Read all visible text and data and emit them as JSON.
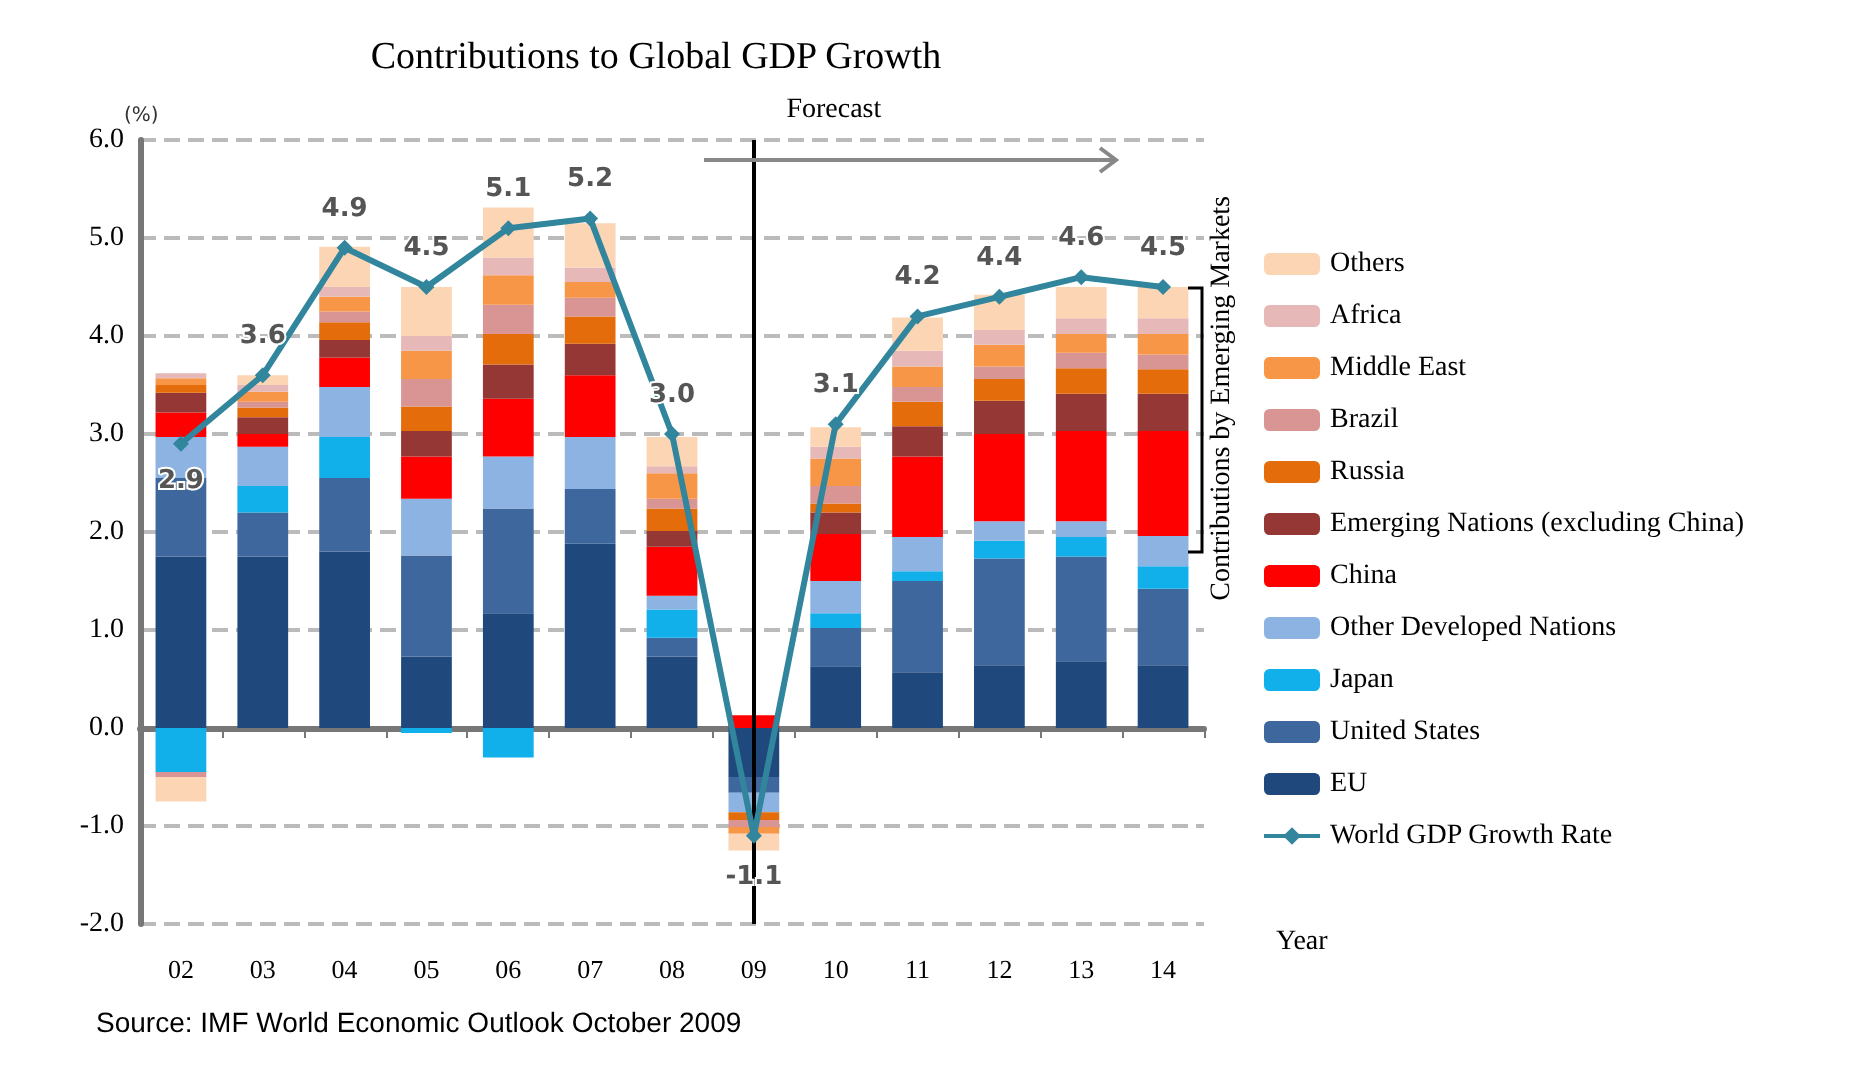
{
  "chart_data": {
    "type": "bar",
    "stacked": true,
    "title": "Contributions to Global GDP Growth",
    "ylabel": "(%)",
    "xlabel": "Year",
    "categories": [
      "02",
      "03",
      "04",
      "05",
      "06",
      "07",
      "08",
      "09",
      "10",
      "11",
      "12",
      "13",
      "14"
    ],
    "series": [
      {
        "name": "EU",
        "color": "#1f497d",
        "values": [
          1.75,
          1.75,
          1.8,
          0.73,
          1.17,
          1.88,
          0.73,
          -0.5,
          0.63,
          0.57,
          0.64,
          0.68,
          0.64
        ]
      },
      {
        "name": "United States",
        "color": "#3e679e",
        "values": [
          0.8,
          0.45,
          0.75,
          1.03,
          1.07,
          0.56,
          0.19,
          -0.16,
          0.39,
          0.93,
          1.09,
          1.07,
          0.78
        ]
      },
      {
        "name": "Japan",
        "color": "#12b0ea",
        "values": [
          -0.45,
          0.27,
          0.42,
          -0.05,
          -0.3,
          0,
          0.29,
          0,
          0.15,
          0.1,
          0.18,
          0.2,
          0.23
        ]
      },
      {
        "name": "Other Developed Nations",
        "color": "#8db3e2",
        "values": [
          0.42,
          0.4,
          0.51,
          0.58,
          0.53,
          0.53,
          0.14,
          -0.2,
          0.33,
          0.35,
          0.2,
          0.16,
          0.31
        ]
      },
      {
        "name": "China",
        "color": "#ff0000",
        "values": [
          0.25,
          0.13,
          0.3,
          0.43,
          0.59,
          0.63,
          0.5,
          0.13,
          0.48,
          0.82,
          0.89,
          0.92,
          1.07
        ]
      },
      {
        "name": "Emerging Nations (excluding China)",
        "color": "#953735",
        "values": [
          0.2,
          0.17,
          0.18,
          0.26,
          0.35,
          0.32,
          0.16,
          0,
          0.22,
          0.31,
          0.34,
          0.38,
          0.38
        ]
      },
      {
        "name": "Russia",
        "color": "#e46c0a",
        "values": [
          0.08,
          0.1,
          0.18,
          0.25,
          0.31,
          0.28,
          0.23,
          -0.08,
          0.09,
          0.25,
          0.22,
          0.26,
          0.25
        ]
      },
      {
        "name": "Brazil",
        "color": "#d99594",
        "values": [
          -0.05,
          0.06,
          0.11,
          0.28,
          0.3,
          0.19,
          0.1,
          -0.07,
          0.18,
          0.15,
          0.13,
          0.16,
          0.15
        ]
      },
      {
        "name": "Middle East",
        "color": "#f79646",
        "values": [
          0.07,
          0.1,
          0.15,
          0.29,
          0.3,
          0.16,
          0.26,
          -0.07,
          0.28,
          0.21,
          0.22,
          0.19,
          0.21
        ]
      },
      {
        "name": "Africa",
        "color": "#e6b9b8",
        "values": [
          0.05,
          0.07,
          0.1,
          0.15,
          0.18,
          0.15,
          0.07,
          0,
          0.12,
          0.16,
          0.15,
          0.16,
          0.16
        ]
      },
      {
        "name": "Others",
        "color": "#fcd5b5",
        "values": [
          -0.25,
          0.1,
          0.41,
          0.5,
          0.51,
          0.45,
          0.3,
          -0.17,
          0.2,
          0.34,
          0.36,
          0.32,
          0.32
        ]
      },
      {
        "name": "World GDP Growth Rate",
        "type": "line",
        "color": "#31859c",
        "marker": "diamond",
        "values": [
          2.9,
          3.6,
          4.9,
          4.5,
          5.1,
          5.2,
          3.0,
          -1.1,
          3.1,
          4.2,
          4.4,
          4.6,
          4.5
        ],
        "value_labels": [
          "2.9",
          "3.6",
          "4.9",
          "4.5",
          "5.1",
          "5.2",
          "3.0",
          "-1.1",
          "3.1",
          "4.2",
          "4.4",
          "4.6",
          "4.5"
        ]
      }
    ],
    "ylim": [
      -2,
      6
    ],
    "yticks": [
      {
        "value": -2,
        "label": "-2.0"
      },
      {
        "value": -1,
        "label": "-1.0"
      },
      {
        "value": 0,
        "label": "0.0"
      },
      {
        "value": 1,
        "label": "1.0"
      },
      {
        "value": 2,
        "label": "2.0"
      },
      {
        "value": 3,
        "label": "3.0"
      },
      {
        "value": 4,
        "label": "4.0"
      },
      {
        "value": 5,
        "label": "5.0"
      },
      {
        "value": 6,
        "label": "6.0"
      }
    ],
    "grid": "y",
    "legend": "right",
    "ref_lines": [
      {
        "axis": "x",
        "value": "09",
        "label": "Forecast",
        "color": "#000000"
      }
    ],
    "annotations": [
      "Contributions by Emerging Markets",
      "Source: IMF World Economic Outlook October 2009"
    ]
  }
}
